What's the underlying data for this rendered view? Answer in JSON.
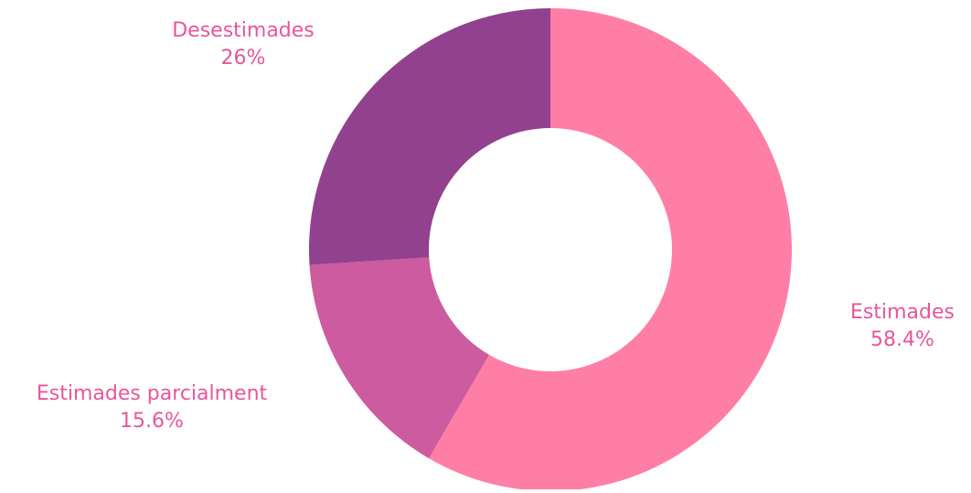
{
  "chart_data": {
    "type": "pie",
    "variant": "donut",
    "title": "",
    "slices": [
      {
        "label": "Estimades",
        "value": 58.4,
        "display": "58.4%",
        "color": "#ff7ea6"
      },
      {
        "label": "Estimades parcialment",
        "value": 15.6,
        "display": "15.6%",
        "color": "#cc5b9f"
      },
      {
        "label": "Desestimades",
        "value": 26,
        "display": "26%",
        "color": "#91418e"
      }
    ],
    "start_angle": "12 o'clock",
    "direction": "clockwise",
    "legend": "none",
    "label_color": "#e8559a"
  }
}
